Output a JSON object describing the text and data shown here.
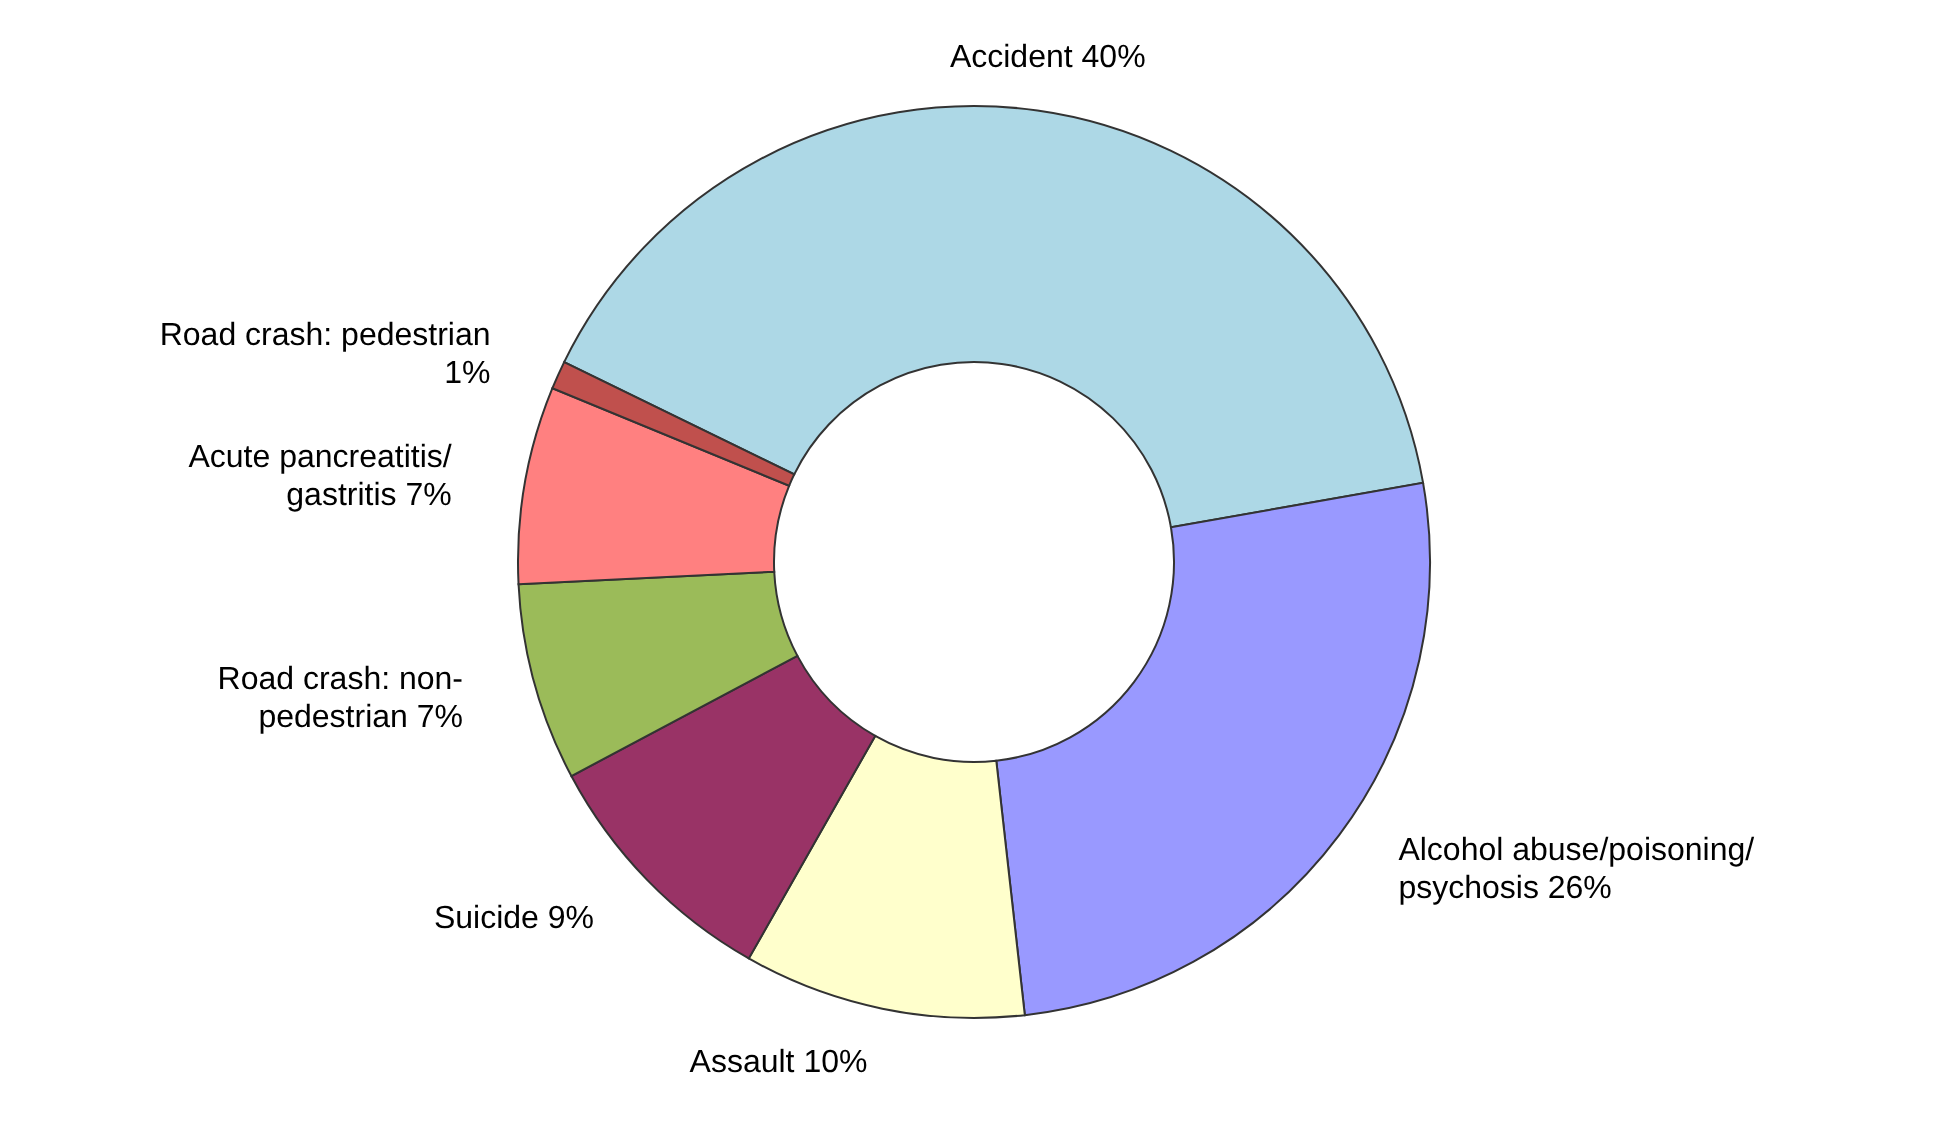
{
  "chart_data": {
    "type": "donut",
    "categories": [
      "Accident",
      "Alcohol abuse/poisoning/\npsychosis",
      "Assault",
      "Suicide",
      "Road crash: non-\npedestrian",
      "Acute pancreatitis/\ngastritis",
      "Road crash: pedestrian\n"
    ],
    "values": [
      40,
      26,
      10,
      9,
      7,
      7,
      1
    ],
    "value_labels": [
      "40%",
      "26%",
      "10%",
      "9%",
      "7%",
      "7%",
      "1%"
    ],
    "colors": [
      "#add8e6",
      "#9999ff",
      "#ffffcc",
      "#993366",
      "#9bbb59",
      "#ff8080",
      "#c0504d"
    ]
  }
}
